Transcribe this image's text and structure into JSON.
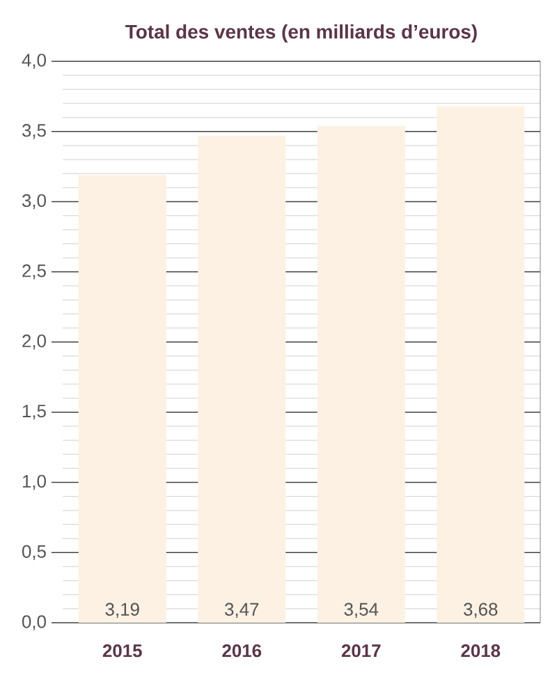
{
  "chart_data": {
    "type": "bar",
    "title": "Total des ventes (en milliards d’euros)",
    "categories": [
      "2015",
      "2016",
      "2017",
      "2018"
    ],
    "values": [
      3.19,
      3.47,
      3.54,
      3.68
    ],
    "value_labels": [
      "3,19",
      "3,47",
      "3,54",
      "3,68"
    ],
    "color": "#fcf1e3",
    "ylim": [
      0,
      4
    ],
    "yticks": [
      {
        "value": 0,
        "label": "0,0"
      },
      {
        "value": 0.5,
        "label": "0,5"
      },
      {
        "value": 1,
        "label": "1,0"
      },
      {
        "value": 1.5,
        "label": "1,5"
      },
      {
        "value": 2,
        "label": "2,0"
      },
      {
        "value": 2.5,
        "label": "2,5"
      },
      {
        "value": 3,
        "label": "3,0"
      },
      {
        "value": 3.5,
        "label": "3,5"
      },
      {
        "value": 4,
        "label": "4,0"
      }
    ],
    "grid": "y"
  }
}
